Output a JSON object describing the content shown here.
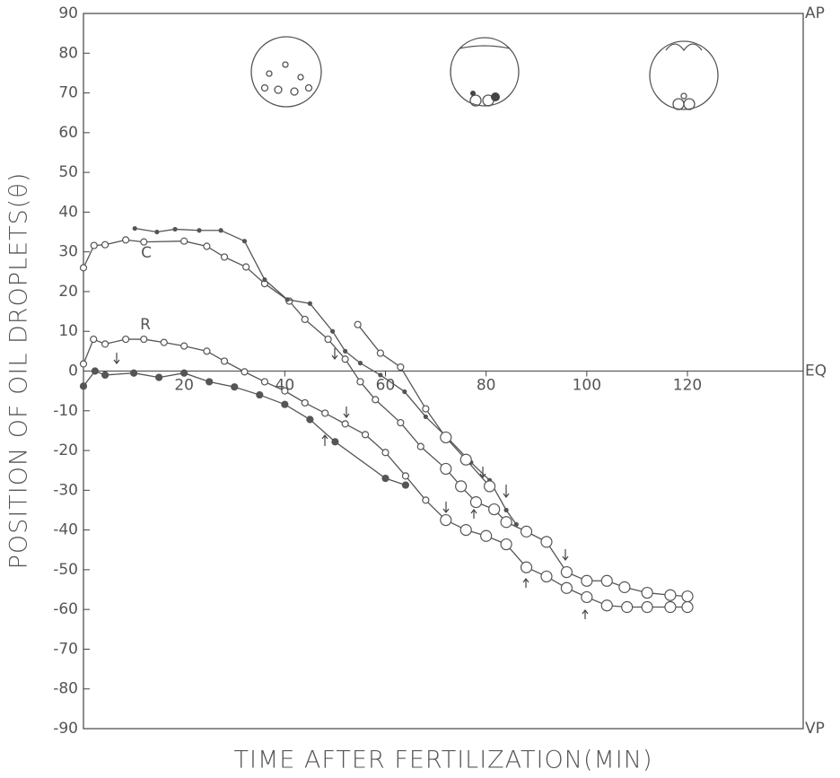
{
  "chart_data": {
    "type": "line",
    "x_label": "TIME AFTER FERTILIZATION(MIN)",
    "y_label": "POSITION OF OIL DROPLETS(θ)",
    "xlim": [
      0,
      143
    ],
    "ylim": [
      -90,
      90
    ],
    "xticks": [
      20,
      40,
      60,
      80,
      100,
      120
    ],
    "yticks": [
      -90,
      -80,
      -70,
      -60,
      -50,
      -40,
      -30,
      -20,
      -10,
      0,
      10,
      20,
      30,
      40,
      50,
      60,
      70,
      80,
      90
    ],
    "y2lim": [
      -90,
      90
    ],
    "y2ticks": [
      {
        "value": -90,
        "label": "VP"
      },
      {
        "value": 0,
        "label": "EQ"
      },
      {
        "value": 90,
        "label": "AP"
      }
    ],
    "annotations": [
      "C",
      "R"
    ],
    "series": [
      {
        "marker": "open",
        "color": "#555",
        "x": [
          0,
          2.1,
          4.3,
          8.4,
          12,
          20,
          24.5,
          28,
          32.3,
          36,
          40.9,
          44,
          48.6,
          52,
          55,
          58,
          63,
          67,
          72,
          75,
          78,
          81.6,
          84,
          88,
          92,
          96,
          100,
          104,
          107.5,
          112,
          116.6,
          120
        ],
        "values": [
          26,
          31.6,
          31.8,
          33,
          32.5,
          32.7,
          31.4,
          28.7,
          26.2,
          22,
          17.6,
          13,
          8,
          3,
          -2.7,
          -7.2,
          -13,
          -19,
          -24.6,
          -29,
          -33,
          -34.8,
          -38,
          -40.4,
          -43,
          -50.6,
          -52.8,
          -52.8,
          -54.4,
          -55.8,
          -56.4,
          -56.7
        ]
      },
      {
        "marker": "dot",
        "color": "#555",
        "x": [
          10.2,
          14.6,
          18.2,
          23,
          27.3,
          32,
          36,
          40.5,
          45,
          49.5,
          52,
          55,
          59,
          63.8,
          68,
          72.5,
          77,
          80.7,
          84,
          86
        ],
        "values": [
          35.9,
          35,
          35.7,
          35.4,
          35.4,
          32.7,
          23,
          18,
          17,
          10,
          5,
          2,
          -1,
          -5.2,
          -11.5,
          -17,
          -23,
          -27.5,
          -35,
          -38.6
        ]
      },
      {
        "marker": "open",
        "color": "#555",
        "x": [
          54.5,
          59,
          63,
          68,
          72,
          76,
          80.7
        ],
        "values": [
          11.7,
          4.5,
          1,
          -9.5,
          -16.7,
          -22.3,
          -29
        ]
      },
      {
        "marker": "open",
        "color": "#555",
        "x": [
          0,
          2,
          4.3,
          8.4,
          12,
          16,
          20,
          24.5,
          28,
          32,
          36,
          40,
          44,
          48,
          52,
          56,
          60,
          64,
          68,
          72,
          76,
          80,
          84,
          88,
          92,
          96,
          100,
          104,
          108,
          112,
          116.6,
          120
        ],
        "values": [
          1.8,
          8,
          6.8,
          8,
          8,
          7.2,
          6.3,
          5,
          2.5,
          -0.2,
          -2.7,
          -5,
          -8,
          -10.6,
          -13.3,
          -16,
          -20.5,
          -26.4,
          -32.5,
          -37.5,
          -40,
          -41.5,
          -43.6,
          -49.4,
          -51.7,
          -54.6,
          -56.9,
          -59,
          -59.4,
          -59.4,
          -59.4,
          -59.4
        ]
      },
      {
        "marker": "filled",
        "color": "#555",
        "x": [
          0,
          2.3,
          4.3,
          10,
          15,
          20,
          25,
          30,
          35,
          40,
          45,
          50,
          60,
          64
        ],
        "values": [
          -3.8,
          0,
          -1,
          -0.5,
          -1.6,
          -0.5,
          -2.7,
          -4,
          -6,
          -8.4,
          -12.2,
          -17.8,
          -27,
          -28.7
        ]
      }
    ]
  }
}
